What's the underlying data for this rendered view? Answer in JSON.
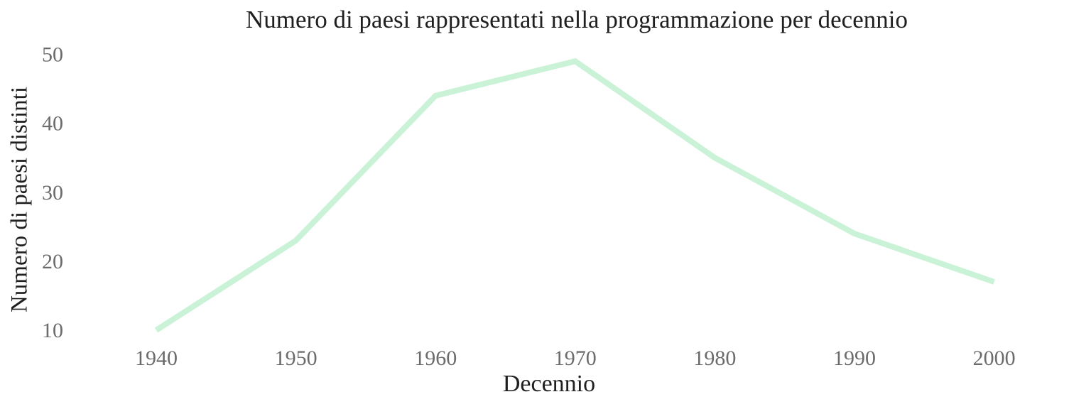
{
  "chart_data": {
    "type": "line",
    "title": "Numero di paesi rappresentati nella programmazione per decennio",
    "xlabel": "Decennio",
    "ylabel": "Numero di paesi distinti",
    "categories": [
      "1940",
      "1950",
      "1960",
      "1970",
      "1980",
      "1990",
      "2000"
    ],
    "series": [
      {
        "name": "Numero di paesi distinti",
        "values": [
          10,
          23,
          44,
          49,
          35,
          24,
          17
        ]
      }
    ],
    "yticks": [
      10,
      20,
      30,
      40,
      50
    ],
    "ylim": [
      10,
      50
    ],
    "grid": false,
    "legend_position": "none",
    "colors": {
      "line": "#c9f2d6",
      "tick_text": "#6b6b6b",
      "label_text": "#1f1f1f",
      "background": "#ffffff"
    }
  }
}
